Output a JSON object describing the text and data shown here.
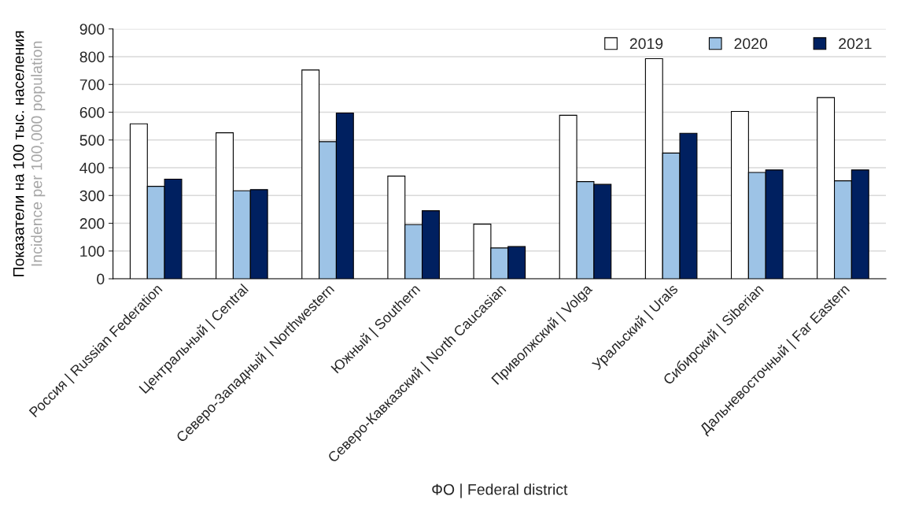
{
  "chart_data": {
    "type": "bar",
    "categories": [
      "Россия | Russian Federation",
      "Центральный | Central",
      "Северо-Западный | Northwestern",
      "Южный | Southern",
      "Северо-Кавказский | North Caucasian",
      "Приволжский | Volga",
      "Уральский | Urals",
      "Сибирский | Siberian",
      "Дальневосточный | Far Eastern"
    ],
    "series": [
      {
        "name": "2019",
        "color": "#ffffff",
        "values": [
          558,
          526,
          752,
          370,
          197,
          589,
          793,
          603,
          653
        ]
      },
      {
        "name": "2020",
        "color": "#9dc3e6",
        "values": [
          333,
          317,
          494,
          195,
          111,
          350,
          453,
          383,
          353
        ]
      },
      {
        "name": "2021",
        "color": "#002060",
        "values": [
          359,
          321,
          597,
          245,
          116,
          340,
          524,
          392,
          392
        ]
      }
    ],
    "xlabel": "ФО | Federal district",
    "ylabel": "Показатели на 100 тыс. населения\nIncidence per 100,000 population",
    "ylim": [
      0,
      900
    ],
    "yticks": [
      0,
      100,
      200,
      300,
      400,
      500,
      600,
      700,
      800,
      900
    ],
    "grid": "y",
    "legend": "top right"
  }
}
